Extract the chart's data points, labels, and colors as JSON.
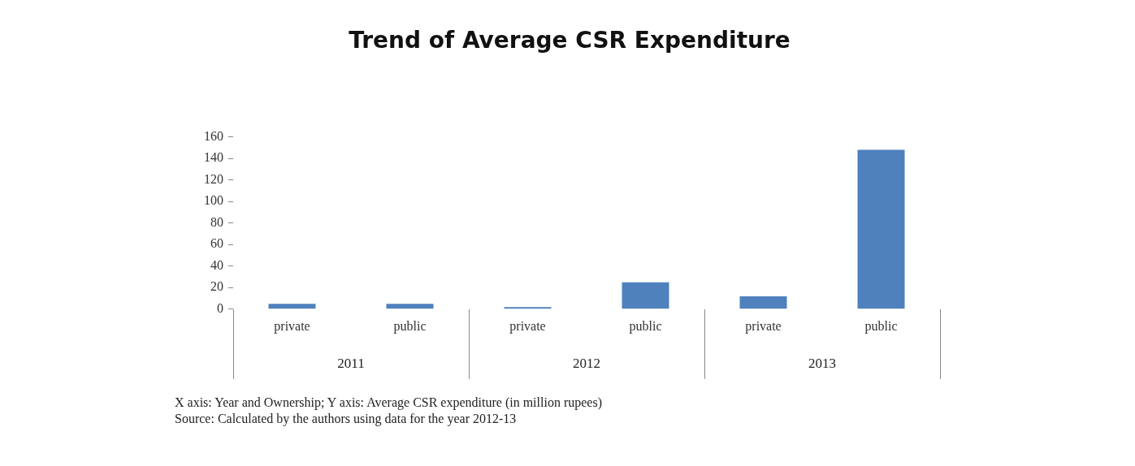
{
  "chart_data": {
    "type": "bar",
    "title": "Trend of Average CSR Expenditure",
    "categories": [
      "private",
      "public",
      "private",
      "public",
      "private",
      "public"
    ],
    "values": [
      5,
      5,
      2,
      25,
      12,
      148
    ],
    "color": "#4f81bd",
    "ylim": [
      0,
      160
    ],
    "yticks": [
      0,
      20,
      40,
      60,
      80,
      100,
      120,
      140,
      160
    ],
    "grid": false,
    "legend": false,
    "annotations": [
      "2011",
      "2012",
      "2013",
      "X axis: Year and Ownership; Y axis: Average CSR expenditure (in million rupees)",
      "Source: Calculated by the authors using data for the year 2012-13"
    ]
  }
}
